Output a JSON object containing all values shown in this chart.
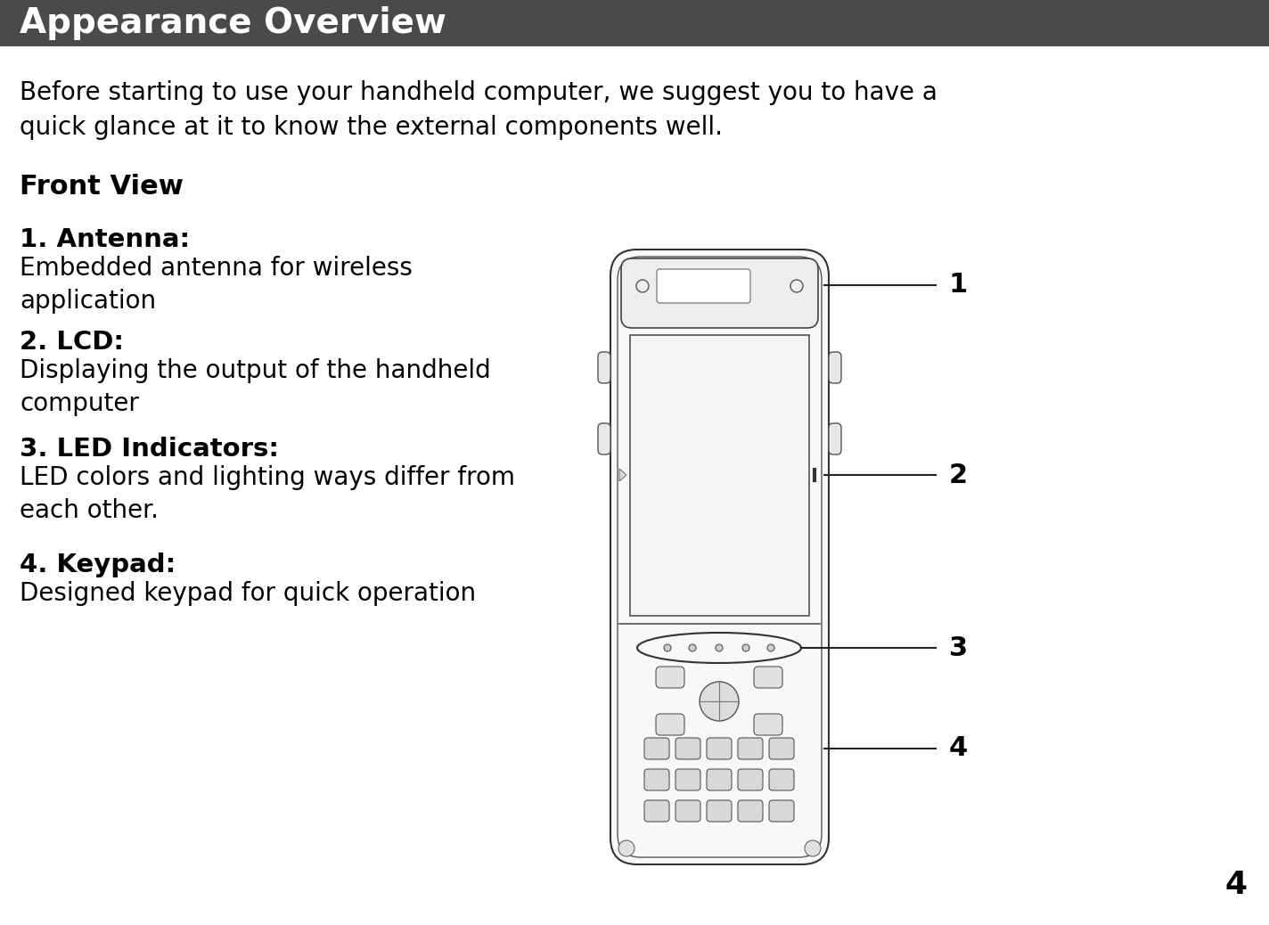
{
  "header_bg_color": "#4a4a4a",
  "header_text": "Appearance Overview",
  "header_text_color": "#ffffff",
  "header_fontsize": 28,
  "page_bg_color": "#ffffff",
  "body_text_color": "#000000",
  "intro_text": "Before starting to use your handheld computer, we suggest you to have a\nquick glance at it to know the external components well.",
  "intro_fontsize": 20,
  "section_title": "Front View",
  "section_fontsize": 22,
  "items": [
    {
      "label": "1. Antenna:",
      "desc": "Embedded antenna for wireless\napplication"
    },
    {
      "label": "2. LCD:",
      "desc": "Displaying the output of the handheld\ncomputer"
    },
    {
      "label": "3. LED Indicators:",
      "desc": "LED colors and lighting ways differ from\neach other."
    },
    {
      "label": "4. Keypad:",
      "desc": "Designed keypad for quick operation"
    }
  ],
  "item_label_fontsize": 21,
  "item_desc_fontsize": 20,
  "page_number": "4",
  "page_number_fontsize": 26,
  "callout_numbers": [
    "1",
    "2",
    "3",
    "4"
  ],
  "callout_fontsize": 22
}
